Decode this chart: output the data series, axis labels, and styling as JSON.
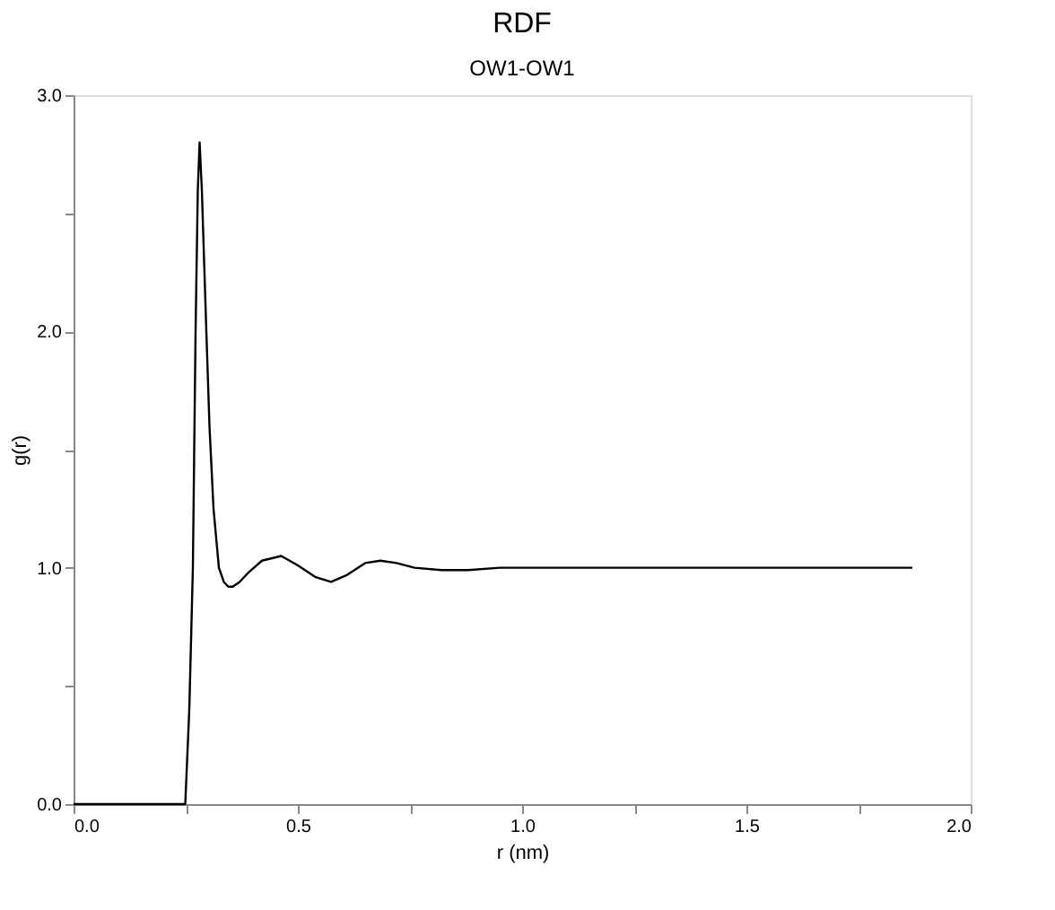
{
  "chart_data": {
    "type": "line",
    "title": "RDF",
    "subtitle": "OW1-OW1",
    "xlabel": "r (nm)",
    "ylabel": "g(r)",
    "x": [
      0.0,
      0.24,
      0.249,
      0.258,
      0.266,
      0.272,
      0.277,
      0.281,
      0.286,
      0.291,
      0.296,
      0.303,
      0.312,
      0.324,
      0.335,
      0.345,
      0.355,
      0.37,
      0.39,
      0.42,
      0.463,
      0.5,
      0.54,
      0.574,
      0.61,
      0.65,
      0.684,
      0.72,
      0.76,
      0.82,
      0.88,
      0.95,
      1.0,
      1.1,
      1.2,
      1.3,
      1.4,
      1.5,
      1.6,
      1.7,
      1.8,
      1.87
    ],
    "series": [
      {
        "color": "#000000",
        "values": [
          0.0,
          0.0,
          0.0,
          0.4,
          1.0,
          2.0,
          2.6,
          2.8,
          2.6,
          2.3,
          2.0,
          1.6,
          1.25,
          1.0,
          0.94,
          0.92,
          0.92,
          0.94,
          0.98,
          1.03,
          1.05,
          1.01,
          0.96,
          0.94,
          0.97,
          1.02,
          1.03,
          1.02,
          1.0,
          0.99,
          0.99,
          1.0,
          1.0,
          1.0,
          1.0,
          1.0,
          1.0,
          1.0,
          1.0,
          1.0,
          1.0,
          1.0
        ]
      }
    ],
    "xlim": [
      0.0,
      2.0
    ],
    "ylim": [
      0.0,
      3.0
    ],
    "xticks": [
      {
        "value": 0,
        "label": "0.0"
      },
      {
        "value": 0.25,
        "label": null
      },
      {
        "value": 0.5,
        "label": "0.5"
      },
      {
        "value": 0.75,
        "label": null
      },
      {
        "value": 1,
        "label": "1.0"
      },
      {
        "value": 1.25,
        "label": null
      },
      {
        "value": 1.5,
        "label": "1.5"
      },
      {
        "value": 1.75,
        "label": null
      },
      {
        "value": 2,
        "label": "2.0"
      }
    ],
    "yticks": [
      {
        "value": 0,
        "label": "0.0"
      },
      {
        "value": 0.5,
        "label": null
      },
      {
        "value": 1,
        "label": "1.0"
      },
      {
        "value": 1.5,
        "label": null
      },
      {
        "value": 2,
        "label": "2.0"
      },
      {
        "value": 2.5,
        "label": null
      },
      {
        "value": 3,
        "label": "3.0"
      }
    ],
    "grid": false,
    "marker": "none",
    "line_style": "solid"
  }
}
